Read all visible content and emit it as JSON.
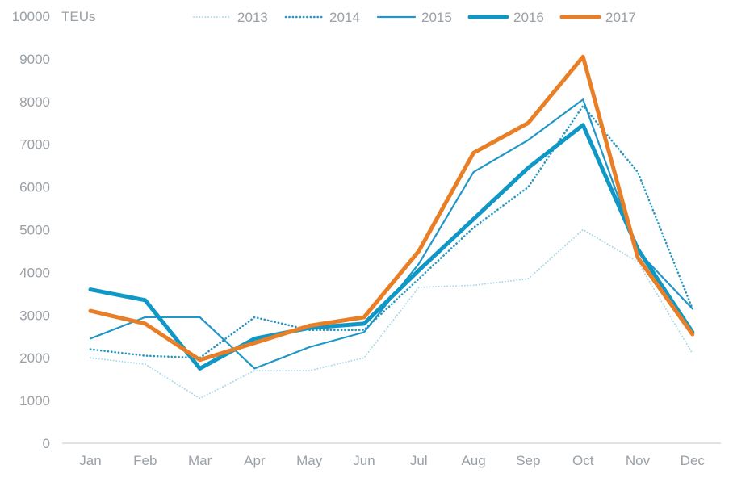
{
  "chart_data": {
    "type": "line",
    "title": "",
    "unit_label": "TEUs",
    "legend_position": "top",
    "grid": false,
    "categories": [
      "Jan",
      "Feb",
      "Mar",
      "Apr",
      "May",
      "Jun",
      "Jul",
      "Aug",
      "Sep",
      "Oct",
      "Nov",
      "Dec"
    ],
    "y_axis": {
      "min": 0,
      "max": 10000,
      "step": 1000
    },
    "series": [
      {
        "name": "2013",
        "color": "#a9d6e8",
        "style": "dotted",
        "width": 1.8,
        "values": [
          2000,
          1850,
          1050,
          1700,
          1700,
          2000,
          3650,
          3700,
          3850,
          5000,
          4250,
          2100
        ]
      },
      {
        "name": "2014",
        "color": "#2a97c0",
        "style": "dotted",
        "width": 2.6,
        "values": [
          2200,
          2050,
          2000,
          2950,
          2650,
          2650,
          3850,
          5050,
          6000,
          7900,
          6350,
          3150
        ]
      },
      {
        "name": "2015",
        "color": "#2196c7",
        "style": "solid",
        "width": 2.2,
        "values": [
          2450,
          2950,
          2950,
          1750,
          2250,
          2600,
          4200,
          6350,
          7100,
          8050,
          4500,
          3150
        ]
      },
      {
        "name": "2016",
        "color": "#0f98c6",
        "style": "solid",
        "width": 5,
        "values": [
          3600,
          3350,
          1750,
          2450,
          2700,
          2800,
          4050,
          5250,
          6450,
          7450,
          4550,
          2600
        ]
      },
      {
        "name": "2017",
        "color": "#e87f27",
        "style": "solid",
        "width": 5,
        "values": [
          3100,
          2800,
          1950,
          2350,
          2750,
          2950,
          4500,
          6800,
          7500,
          9050,
          4350,
          2550
        ]
      }
    ]
  },
  "colors": {
    "axis_text": "#9aa0a5",
    "axis_line": "#d9d9d9",
    "background": "#ffffff"
  }
}
